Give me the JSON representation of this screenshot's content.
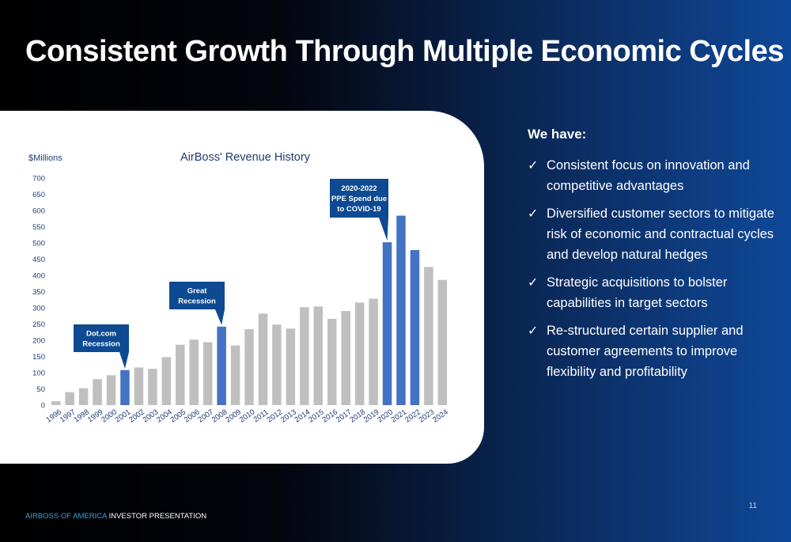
{
  "title": "Consistent Growth Through Multiple Economic Cycles",
  "chart_data": {
    "type": "bar",
    "title": "AirBoss' Revenue History",
    "ylabel": "$Millions",
    "xlabel": "",
    "ylim": [
      0,
      700
    ],
    "yticks": [
      0,
      50,
      100,
      150,
      200,
      250,
      300,
      350,
      400,
      450,
      500,
      550,
      600,
      650,
      700
    ],
    "grid": false,
    "categories": [
      "1996",
      "1997",
      "1998",
      "1999",
      "2000",
      "2001",
      "2002",
      "2003",
      "2004",
      "2005",
      "2006",
      "2007",
      "2008",
      "2009",
      "2010",
      "2011",
      "2012",
      "2013",
      "2014",
      "2015",
      "2016",
      "2017",
      "2018",
      "2019",
      "2020",
      "2021",
      "2022",
      "2023",
      "2024"
    ],
    "values": [
      12,
      40,
      52,
      80,
      92,
      108,
      116,
      112,
      148,
      186,
      202,
      194,
      242,
      184,
      234,
      282,
      248,
      236,
      302,
      304,
      266,
      290,
      316,
      328,
      502,
      584,
      478,
      426,
      386
    ],
    "highlighted": [
      "2001",
      "2008",
      "2020",
      "2021",
      "2022"
    ],
    "colors": {
      "normal": "#bfbfbf",
      "highlight": "#4472c4",
      "text": "#1f3c73",
      "callout": "#0d4a91"
    },
    "annotations": [
      {
        "lines": [
          "Dot.com",
          "Recession"
        ],
        "target": "2001"
      },
      {
        "lines": [
          "Great",
          "Recession"
        ],
        "target": "2008"
      },
      {
        "lines": [
          "2020-2022",
          "PPE Spend due",
          "to COVID-19"
        ],
        "target": "2020"
      }
    ]
  },
  "side": {
    "heading": "We have:",
    "check_symbol": "✓",
    "bullets": [
      "Consistent focus on innovation and competitive advantages",
      "Diversified customer sectors to mitigate risk of economic and contractual cycles and develop natural hedges",
      "Strategic acquisitions to bolster capabilities in target sectors",
      "Re-structured certain supplier and customer agreements to improve flexibility and profitability"
    ]
  },
  "footer": {
    "company": "AIRBOSS OF AMERICA",
    "rest": " INVESTOR PRESENTATION"
  },
  "page_number": "11"
}
